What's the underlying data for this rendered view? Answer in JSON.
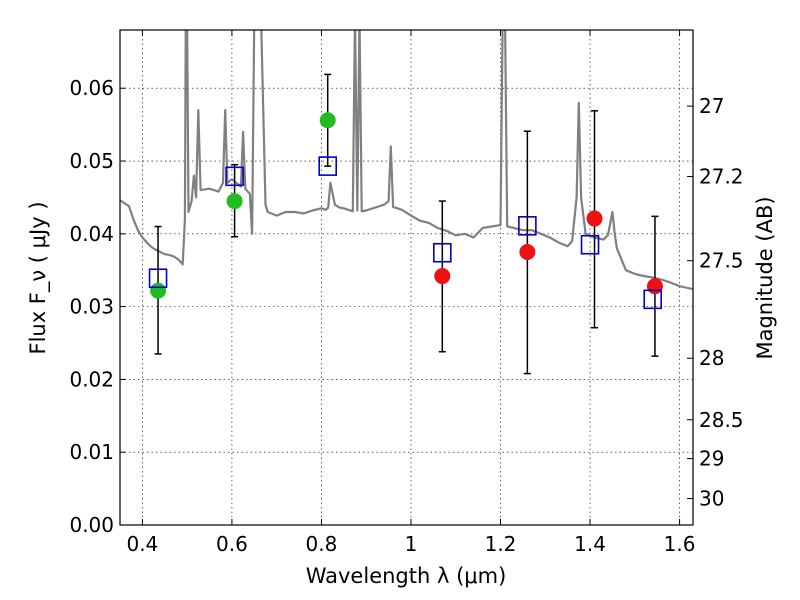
{
  "chart_data": {
    "type": "scatter",
    "xlabel": "Wavelength  λ (μm)",
    "ylabel_left": "Flux  F_ν  ( μJy )",
    "ylabel_right": "Magnitude (AB)",
    "xlim": [
      0.35,
      1.63
    ],
    "ylim": [
      0.0,
      0.068
    ],
    "grid": true,
    "x_ticks": [
      0.4,
      0.6,
      0.8,
      1.0,
      1.2,
      1.4,
      1.6
    ],
    "x_tick_labels": [
      "0.4",
      "0.6",
      "0.8",
      "1",
      "1.2",
      "1.4",
      "1.6"
    ],
    "y_ticks": [
      0.0,
      0.01,
      0.02,
      0.03,
      0.04,
      0.05,
      0.06
    ],
    "y_tick_labels": [
      "0.00",
      "0.01",
      "0.02",
      "0.03",
      "0.04",
      "0.05",
      "0.06"
    ],
    "mag_ticks": [
      27,
      27.2,
      27.5,
      28,
      28.5,
      29,
      30
    ],
    "mag_tick_labels": [
      "27",
      "27.2",
      "27.5",
      "28",
      "28.5",
      "29",
      "30"
    ],
    "observed": [
      {
        "x": 0.435,
        "flux": 0.0322,
        "err_low": 0.0235,
        "err_high": 0.041,
        "color": "#22bb22"
      },
      {
        "x": 0.606,
        "flux": 0.0445,
        "err_low": 0.0396,
        "err_high": 0.0495,
        "color": "#22bb22"
      },
      {
        "x": 0.814,
        "flux": 0.0556,
        "err_low": 0.0493,
        "err_high": 0.0619,
        "color": "#22bb22"
      },
      {
        "x": 1.07,
        "flux": 0.0342,
        "err_low": 0.0238,
        "err_high": 0.0445,
        "color": "#ee1111"
      },
      {
        "x": 1.26,
        "flux": 0.0375,
        "err_low": 0.0208,
        "err_high": 0.0541,
        "color": "#ee1111"
      },
      {
        "x": 1.41,
        "flux": 0.0421,
        "err_low": 0.0271,
        "err_high": 0.0569,
        "color": "#ee1111"
      },
      {
        "x": 1.545,
        "flux": 0.0328,
        "err_low": 0.0232,
        "err_high": 0.0424,
        "color": "#ee1111"
      }
    ],
    "model_photometry": [
      {
        "x": 0.435,
        "flux": 0.0339
      },
      {
        "x": 0.606,
        "flux": 0.0479
      },
      {
        "x": 0.814,
        "flux": 0.0493
      },
      {
        "x": 1.07,
        "flux": 0.0374
      },
      {
        "x": 1.26,
        "flux": 0.0411
      },
      {
        "x": 1.4,
        "flux": 0.0385
      },
      {
        "x": 1.54,
        "flux": 0.031
      }
    ],
    "sed_model": [
      [
        0.35,
        0.0446
      ],
      [
        0.37,
        0.0438
      ],
      [
        0.38,
        0.042
      ],
      [
        0.39,
        0.0405
      ],
      [
        0.4,
        0.0395
      ],
      [
        0.41,
        0.0388
      ],
      [
        0.42,
        0.0382
      ],
      [
        0.43,
        0.0378
      ],
      [
        0.44,
        0.0375
      ],
      [
        0.45,
        0.0372
      ],
      [
        0.46,
        0.0371
      ],
      [
        0.47,
        0.0369
      ],
      [
        0.48,
        0.0365
      ],
      [
        0.49,
        0.0358
      ],
      [
        0.495,
        0.042
      ],
      [
        0.497,
        0.07
      ],
      [
        0.5,
        0.07
      ],
      [
        0.503,
        0.043
      ],
      [
        0.51,
        0.0445
      ],
      [
        0.515,
        0.048
      ],
      [
        0.52,
        0.045
      ],
      [
        0.525,
        0.057
      ],
      [
        0.53,
        0.046
      ],
      [
        0.55,
        0.0462
      ],
      [
        0.57,
        0.0458
      ],
      [
        0.58,
        0.047
      ],
      [
        0.585,
        0.057
      ],
      [
        0.59,
        0.047
      ],
      [
        0.6,
        0.0475
      ],
      [
        0.61,
        0.047
      ],
      [
        0.62,
        0.0465
      ],
      [
        0.625,
        0.054
      ],
      [
        0.63,
        0.0462
      ],
      [
        0.64,
        0.0455
      ],
      [
        0.645,
        0.04
      ],
      [
        0.65,
        0.07
      ],
      [
        0.66,
        0.07
      ],
      [
        0.665,
        0.07
      ],
      [
        0.675,
        0.044
      ],
      [
        0.68,
        0.043
      ],
      [
        0.7,
        0.0425
      ],
      [
        0.72,
        0.043
      ],
      [
        0.74,
        0.043
      ],
      [
        0.76,
        0.0428
      ],
      [
        0.78,
        0.0432
      ],
      [
        0.8,
        0.0435
      ],
      [
        0.81,
        0.0433
      ],
      [
        0.815,
        0.0436
      ],
      [
        0.82,
        0.047
      ],
      [
        0.83,
        0.044
      ],
      [
        0.84,
        0.0436
      ],
      [
        0.85,
        0.0435
      ],
      [
        0.86,
        0.0433
      ],
      [
        0.87,
        0.0431
      ],
      [
        0.875,
        0.07
      ],
      [
        0.88,
        0.0432
      ],
      [
        0.885,
        0.07
      ],
      [
        0.89,
        0.0431
      ],
      [
        0.9,
        0.0432
      ],
      [
        0.92,
        0.0436
      ],
      [
        0.94,
        0.044
      ],
      [
        0.95,
        0.0445
      ],
      [
        0.955,
        0.052
      ],
      [
        0.96,
        0.0437
      ],
      [
        0.98,
        0.0433
      ],
      [
        1.0,
        0.0425
      ],
      [
        1.02,
        0.0418
      ],
      [
        1.04,
        0.0415
      ],
      [
        1.06,
        0.0408
      ],
      [
        1.08,
        0.0404
      ],
      [
        1.1,
        0.0398
      ],
      [
        1.12,
        0.04
      ],
      [
        1.14,
        0.0395
      ],
      [
        1.16,
        0.0408
      ],
      [
        1.18,
        0.041
      ],
      [
        1.2,
        0.0412
      ],
      [
        1.205,
        0.07
      ],
      [
        1.21,
        0.07
      ],
      [
        1.215,
        0.041
      ],
      [
        1.23,
        0.0408
      ],
      [
        1.25,
        0.0405
      ],
      [
        1.27,
        0.0405
      ],
      [
        1.29,
        0.04
      ],
      [
        1.31,
        0.0395
      ],
      [
        1.33,
        0.0388
      ],
      [
        1.35,
        0.0383
      ],
      [
        1.36,
        0.039
      ],
      [
        1.37,
        0.045
      ],
      [
        1.375,
        0.058
      ],
      [
        1.38,
        0.045
      ],
      [
        1.39,
        0.04
      ],
      [
        1.41,
        0.0395
      ],
      [
        1.43,
        0.0392
      ],
      [
        1.44,
        0.0398
      ],
      [
        1.45,
        0.043
      ],
      [
        1.455,
        0.04
      ],
      [
        1.46,
        0.038
      ],
      [
        1.48,
        0.035
      ],
      [
        1.5,
        0.0345
      ],
      [
        1.52,
        0.0342
      ],
      [
        1.54,
        0.034
      ],
      [
        1.56,
        0.0337
      ],
      [
        1.58,
        0.0333
      ],
      [
        1.6,
        0.0328
      ],
      [
        1.63,
        0.0324
      ]
    ]
  }
}
